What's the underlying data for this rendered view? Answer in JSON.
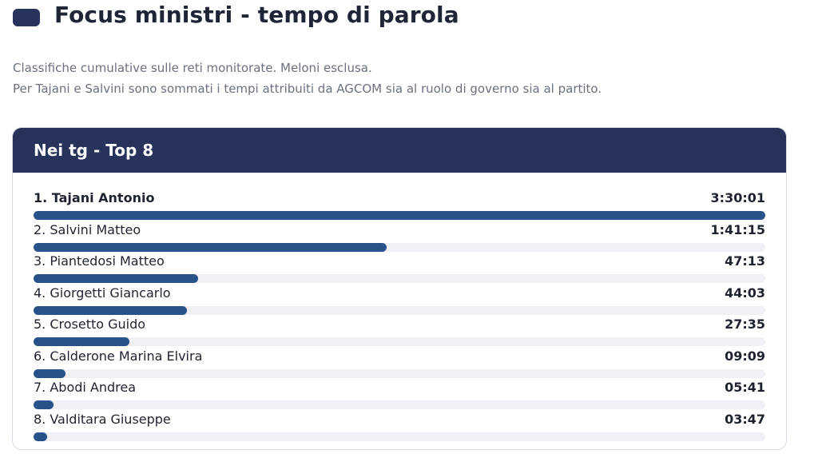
{
  "header": {
    "title": "Focus ministri - tempo di parola",
    "subtitle_lines": [
      "Classifiche cumulative sulle reti monitorate. Meloni esclusa.",
      "Per Tajani e Salvini sono sommati i tempi attribuiti da AGCOM sia al ruolo di governo sia al partito."
    ]
  },
  "card": {
    "title": "Nei tg - Top 8"
  },
  "colors": {
    "header_bg": "#27335a",
    "bar_fill": "#27538a",
    "bar_track": "#eef0f4"
  },
  "chart_data": {
    "type": "bar",
    "orientation": "horizontal",
    "title": "Nei tg - Top 8",
    "unit": "h:mm:ss",
    "categories": [
      "1. Tajani Antonio",
      "2. Salvini Matteo",
      "3. Piantedosi Matteo",
      "4. Giorgetti Giancarlo",
      "5. Crosetto Guido",
      "6. Calderone Marina Elvira",
      "7. Abodi Andrea",
      "8. Valditara Giuseppe"
    ],
    "value_labels": [
      "3:30:01",
      "1:41:15",
      "47:13",
      "44:03",
      "27:35",
      "09:09",
      "05:41",
      "03:47"
    ],
    "values_seconds": [
      12601,
      6075,
      2833,
      2643,
      1655,
      549,
      341,
      227
    ]
  }
}
